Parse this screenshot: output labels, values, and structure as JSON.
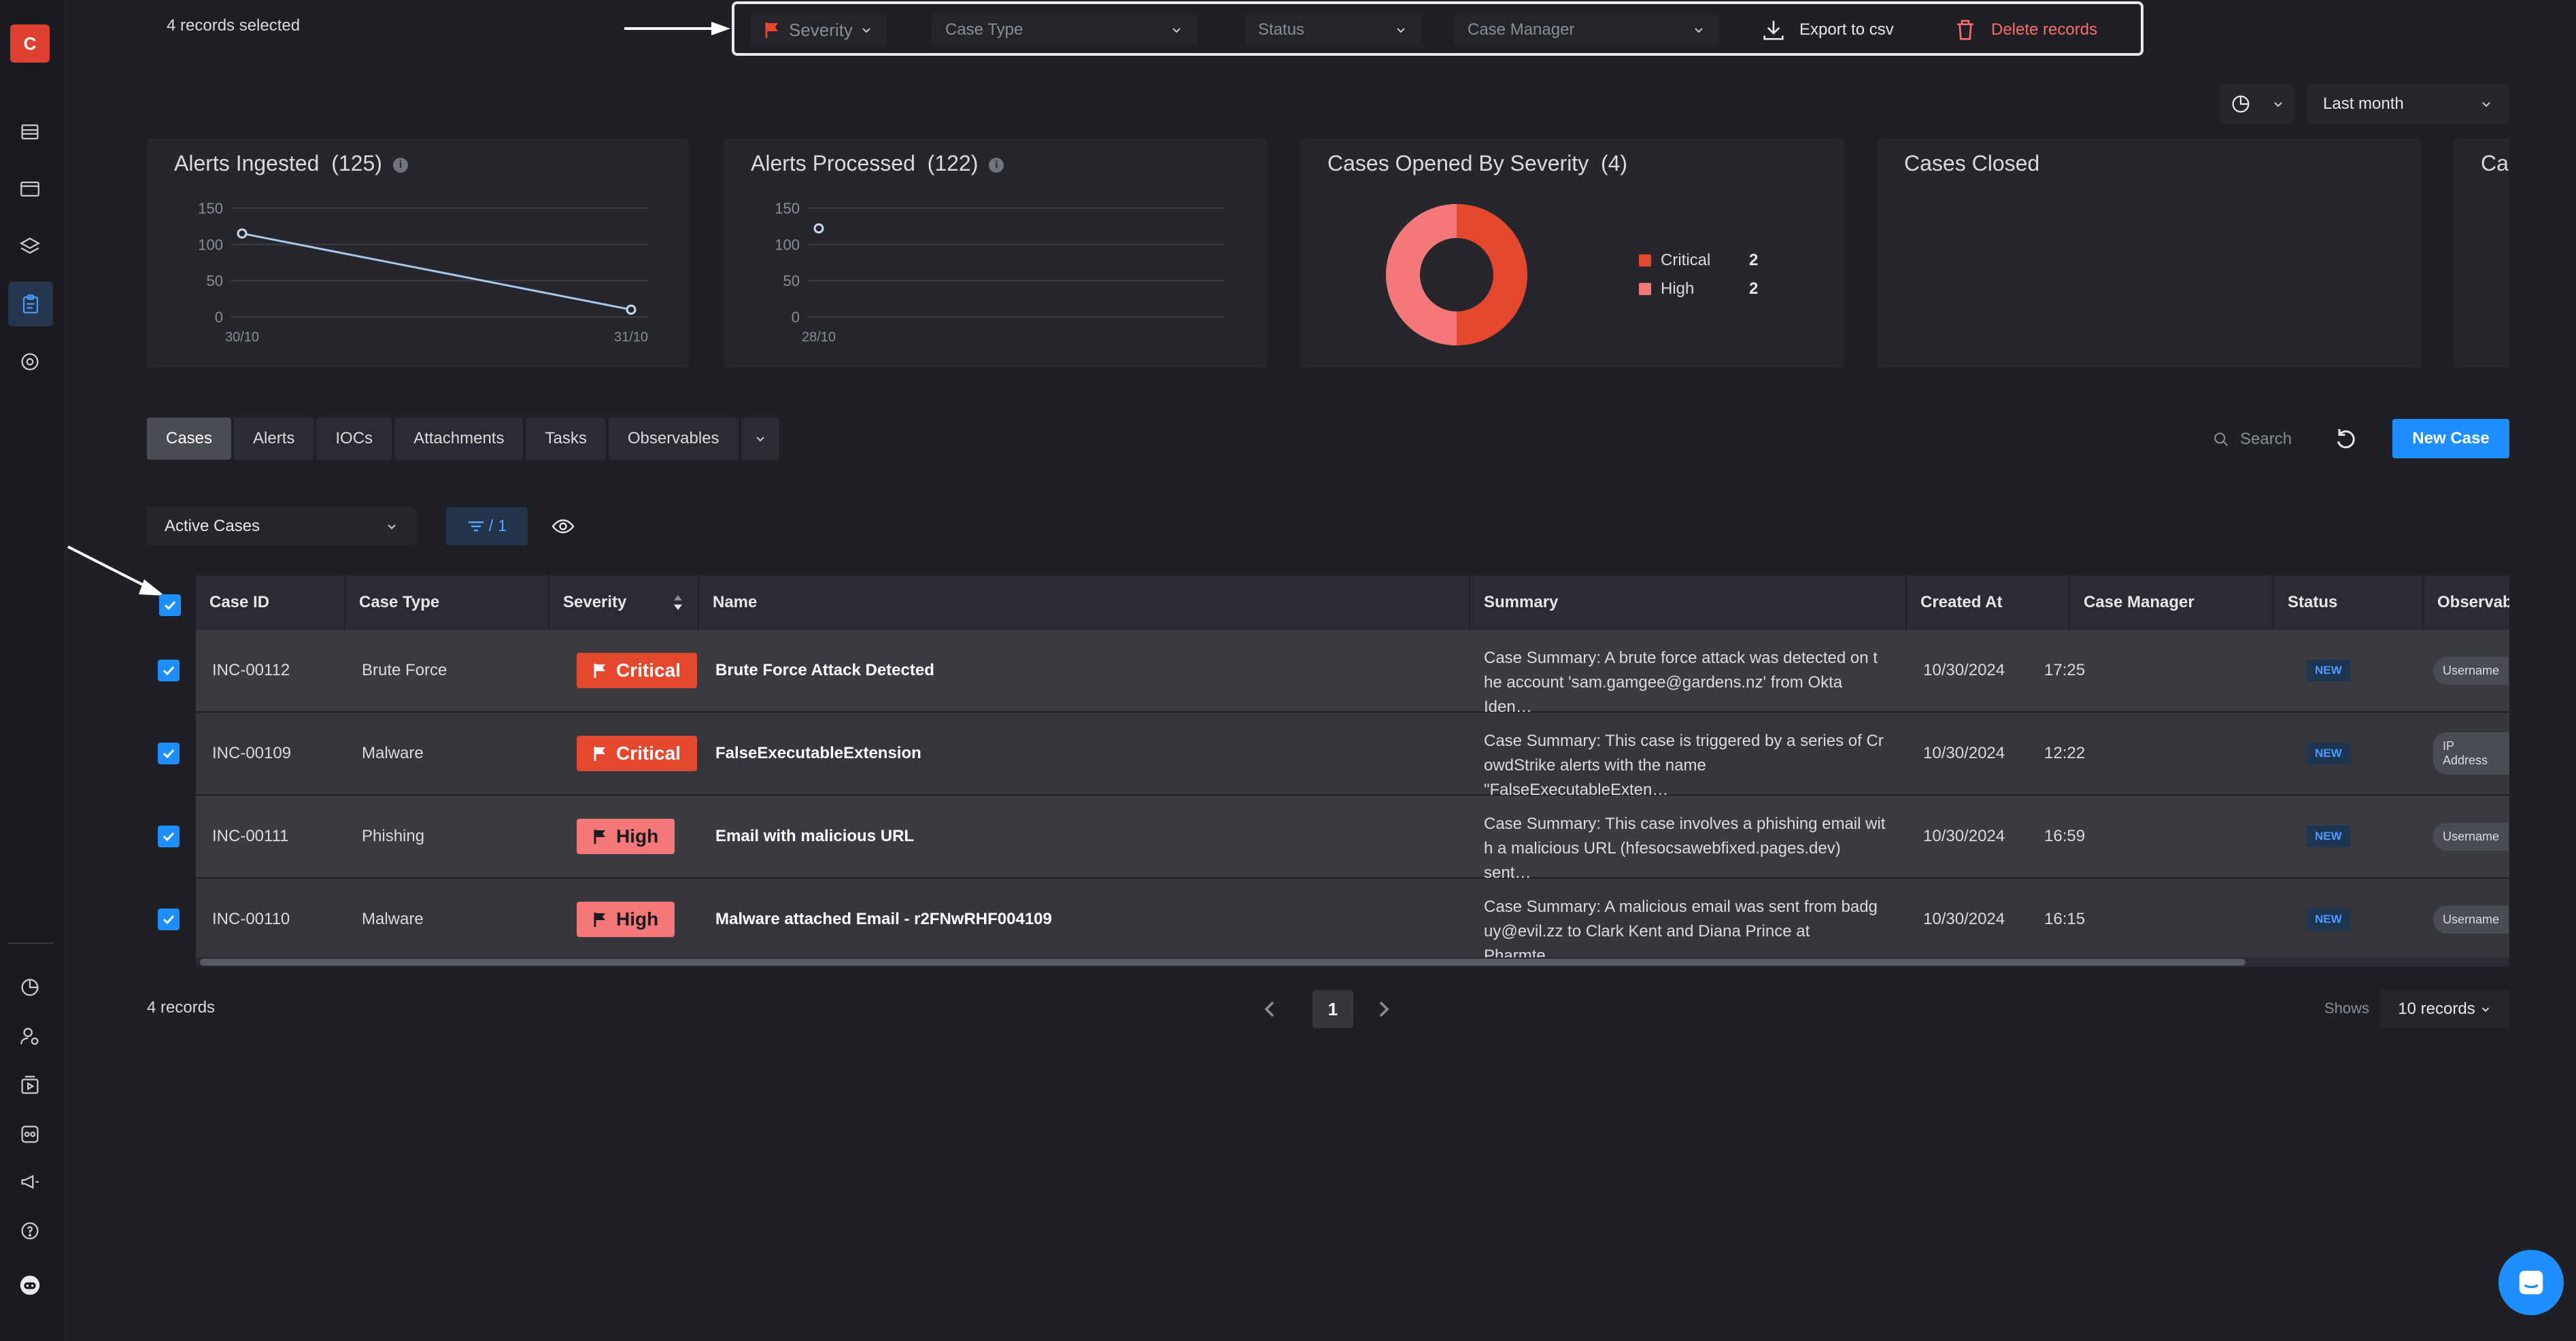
{
  "app": {
    "logo_letter": "C"
  },
  "selection": {
    "text": "4  records selected"
  },
  "bulk_actions": {
    "severity": "Severity",
    "case_type": "Case Type",
    "status": "Status",
    "case_manager": "Case Manager",
    "export": "Export to csv",
    "delete": "Delete records"
  },
  "time_range": {
    "label": "Last month"
  },
  "cards": [
    {
      "title": "Alerts Ingested",
      "count": "(125)"
    },
    {
      "title": "Alerts Processed",
      "count": "(122)"
    },
    {
      "title": "Cases Opened By Severity",
      "count": "(4)"
    },
    {
      "title": "Cases Closed",
      "count": ""
    },
    {
      "title": "Ca",
      "count": ""
    }
  ],
  "chart_data": [
    {
      "type": "line",
      "title": "Alerts Ingested (125)",
      "x": [
        "30/10",
        "31/10"
      ],
      "series": [
        {
          "values": [
            115,
            10
          ]
        }
      ],
      "ylim": [
        0,
        150
      ],
      "yticks": [
        0,
        50,
        100,
        150
      ]
    },
    {
      "type": "line",
      "title": "Alerts Processed (122)",
      "x": [
        "28/10"
      ],
      "series": [
        {
          "values": [
            122
          ]
        }
      ],
      "ylim": [
        0,
        150
      ],
      "yticks": [
        0,
        50,
        100,
        150
      ]
    },
    {
      "type": "pie",
      "title": "Cases Opened By Severity (4)",
      "categories": [
        "Critical",
        "High"
      ],
      "values": [
        2,
        2
      ],
      "colors": [
        "#e5482f",
        "#f47878"
      ],
      "legend": "right"
    }
  ],
  "tabs": [
    "Cases",
    "Alerts",
    "IOCs",
    "Attachments",
    "Tasks",
    "Observables"
  ],
  "search": {
    "placeholder": "Search"
  },
  "new_case": "New Case",
  "active_filter": "Active Cases",
  "filter_chip": "/ 1",
  "table": {
    "columns": [
      "Case ID",
      "Case Type",
      "Severity",
      "Name",
      "Summary",
      "Created At",
      "Case Manager",
      "Status",
      "Observabl"
    ],
    "rows": [
      {
        "id": "INC-00112",
        "type": "Brute Force",
        "severity": "Critical",
        "sev_class": "critical",
        "name": "Brute Force Attack Detected",
        "summary1": "Case Summary: A brute force attack was detected on t",
        "summary2": "he account 'sam.gamgee@gardens.nz' from Okta Iden…",
        "date": "10/30/2024",
        "time": "17:25",
        "status": "NEW",
        "obs": "Username"
      },
      {
        "id": "INC-00109",
        "type": "Malware",
        "severity": "Critical",
        "sev_class": "critical",
        "name": "FalseExecutableExtension",
        "summary1": "Case Summary: This case is triggered by a series of Cr",
        "summary2": "owdStrike alerts with the name \"FalseExecutableExten…",
        "date": "10/30/2024",
        "time": "12:22",
        "status": "NEW",
        "obs": "IP Address"
      },
      {
        "id": "INC-00111",
        "type": "Phishing",
        "severity": "High",
        "sev_class": "high",
        "name": "Email with malicious URL",
        "summary1": "Case Summary: This case involves a phishing email wit",
        "summary2": "h a malicious URL (hfesocsawebfixed.pages.dev) sent…",
        "date": "10/30/2024",
        "time": "16:59",
        "status": "NEW",
        "obs": "Username"
      },
      {
        "id": "INC-00110",
        "type": "Malware",
        "severity": "High",
        "sev_class": "high",
        "name": "Malware attached Email - r2FNwRHF004109",
        "summary1": "Case Summary: A malicious email was sent from badg",
        "summary2": "uy@evil.zz to Clark Kent and Diana Prince at Pharmte…",
        "date": "10/30/2024",
        "time": "16:15",
        "status": "NEW",
        "obs": "Username"
      }
    ]
  },
  "footer": {
    "count": "4 records",
    "page": "1",
    "shows": "Shows",
    "per_page": "10 records"
  },
  "colors": {
    "accent": "#1f8fff",
    "critical": "#e5482f",
    "high": "#f47878",
    "danger_text": "#ff6b6b"
  }
}
